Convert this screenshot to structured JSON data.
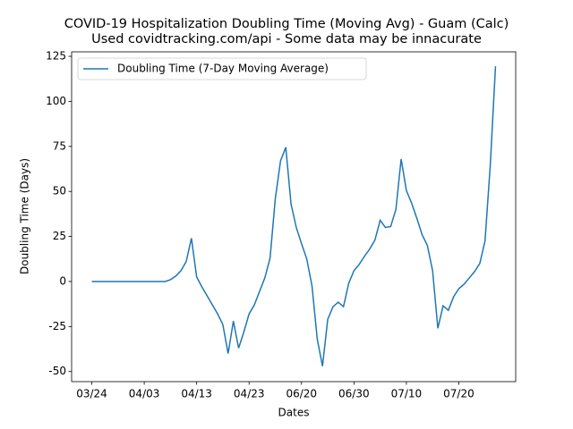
{
  "chart_data": {
    "type": "line",
    "title": "COVID-19 Hospitalization Doubling Time (Moving Avg) - Guam (Calc)",
    "subtitle": "Used covidtracking.com/api - Some data may be innacurate",
    "x_label": "Dates",
    "y_label": "Doubling Time (Days)",
    "categories": [
      "03/24",
      null,
      null,
      null,
      null,
      null,
      null,
      null,
      null,
      null,
      "04/03",
      null,
      null,
      null,
      null,
      null,
      null,
      null,
      null,
      null,
      "04/13",
      null,
      null,
      null,
      null,
      null,
      null,
      null,
      null,
      null,
      "04/23",
      null,
      null,
      null,
      null,
      null,
      null,
      null,
      null,
      null,
      "06/20",
      null,
      null,
      null,
      null,
      null,
      null,
      null,
      null,
      null,
      "06/30",
      null,
      null,
      null,
      null,
      null,
      null,
      null,
      null,
      null,
      "07/10",
      null,
      null,
      null,
      null,
      null,
      null,
      null,
      null,
      null,
      "07/20",
      null,
      null,
      null,
      null,
      null,
      null,
      null
    ],
    "series": [
      {
        "name": "Doubling Time (7-Day Moving Average)",
        "color": "#1f77b4",
        "values": [
          0,
          0,
          0,
          0,
          0,
          0,
          0,
          0,
          0,
          0,
          0,
          0,
          0,
          0,
          0,
          1,
          3,
          6,
          11,
          24,
          2.5,
          -3,
          -8,
          -13,
          -18,
          -24,
          -40,
          -22,
          -37,
          -28,
          -18,
          -13,
          -5.5,
          2,
          13,
          46,
          67,
          74.5,
          43,
          30,
          21,
          12.5,
          -2.5,
          -32,
          -47,
          -21,
          -14,
          -11.5,
          -14,
          -1,
          6,
          9.5,
          14,
          18,
          23,
          34,
          30,
          30.5,
          40,
          68,
          50.5,
          43.5,
          35,
          26,
          20,
          6,
          -26,
          -13.5,
          -16,
          -8.5,
          -4,
          -1.5,
          2,
          5.5,
          10,
          22.5,
          64.5,
          119.5
        ]
      }
    ],
    "ylim": [
      -55.6,
      127.5
    ],
    "yticks": [
      -50,
      -25,
      0,
      25,
      50,
      75,
      100,
      125
    ],
    "legend": "upper left",
    "grid": false
  }
}
